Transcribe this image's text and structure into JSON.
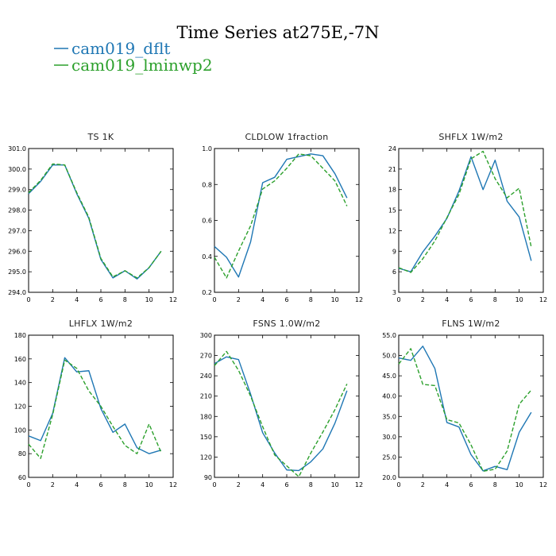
{
  "figure": {
    "title": "Time Series at275E,-7N",
    "legend": [
      {
        "label": "cam019_dflt",
        "color": "#1f77b4",
        "dash": "solid"
      },
      {
        "label": "cam019_lminwp2",
        "color": "#2ca02c",
        "dash": "dashed"
      }
    ]
  },
  "chart_data": [
    {
      "type": "line",
      "title": "TS",
      "units": "1K",
      "x": [
        0,
        1,
        2,
        3,
        4,
        5,
        6,
        7,
        8,
        9,
        10,
        11
      ],
      "xlim": [
        0,
        12
      ],
      "xticks": [
        0,
        2,
        4,
        6,
        8,
        10,
        12
      ],
      "ylim": [
        294,
        301
      ],
      "yticks": [
        "294.0",
        "295.0",
        "296.0",
        "297.0",
        "298.0",
        "299.0",
        "300.0",
        "301.0"
      ],
      "series": [
        {
          "name": "cam019_dflt",
          "values": [
            298.8,
            299.4,
            300.2,
            300.2,
            298.8,
            297.6,
            295.6,
            294.7,
            295.05,
            294.65,
            295.2,
            296.0
          ]
        },
        {
          "name": "cam019_lminwp2",
          "values": [
            298.85,
            299.45,
            300.25,
            300.2,
            298.85,
            297.65,
            295.65,
            294.75,
            295.05,
            294.7,
            295.2,
            296.0
          ]
        }
      ]
    },
    {
      "type": "line",
      "title": "CLDLOW",
      "units": "1fraction",
      "x": [
        0,
        1,
        2,
        3,
        4,
        5,
        6,
        7,
        8,
        9,
        10,
        11
      ],
      "xlim": [
        0,
        12
      ],
      "xticks": [
        0,
        2,
        4,
        6,
        8,
        10,
        12
      ],
      "ylim": [
        0.2,
        1.0
      ],
      "yticks": [
        "0.2",
        "0.4",
        "0.6",
        "0.8",
        "1.0"
      ],
      "series": [
        {
          "name": "cam019_dflt",
          "values": [
            0.455,
            0.395,
            0.285,
            0.48,
            0.81,
            0.84,
            0.94,
            0.955,
            0.97,
            0.96,
            0.86,
            0.725
          ]
        },
        {
          "name": "cam019_lminwp2",
          "values": [
            0.395,
            0.28,
            0.43,
            0.57,
            0.775,
            0.82,
            0.89,
            0.97,
            0.96,
            0.89,
            0.82,
            0.68
          ]
        }
      ]
    },
    {
      "type": "line",
      "title": "SHFLX",
      "units": "1W/m2",
      "x": [
        0,
        1,
        2,
        3,
        4,
        5,
        6,
        7,
        8,
        9,
        10,
        11
      ],
      "xlim": [
        0,
        12
      ],
      "xticks": [
        0,
        2,
        4,
        6,
        8,
        10,
        12
      ],
      "ylim": [
        3,
        24
      ],
      "yticks": [
        "3",
        "6",
        "9",
        "12",
        "15",
        "18",
        "21",
        "24"
      ],
      "series": [
        {
          "name": "cam019_dflt",
          "values": [
            6.5,
            6.0,
            8.9,
            11.2,
            13.8,
            17.8,
            22.8,
            18.0,
            22.3,
            16.3,
            14.0,
            7.6
          ]
        },
        {
          "name": "cam019_lminwp2",
          "values": [
            6.6,
            5.9,
            7.9,
            10.5,
            13.9,
            17.3,
            22.5,
            23.6,
            19.6,
            16.8,
            18.2,
            9.6
          ]
        }
      ]
    },
    {
      "type": "line",
      "title": "LHFLX",
      "units": "1W/m2",
      "x": [
        0,
        1,
        2,
        3,
        4,
        5,
        6,
        7,
        8,
        9,
        10,
        11
      ],
      "xlim": [
        0,
        12
      ],
      "xticks": [
        0,
        2,
        4,
        6,
        8,
        10,
        12
      ],
      "ylim": [
        60,
        180
      ],
      "yticks": [
        "60",
        "80",
        "100",
        "120",
        "140",
        "160",
        "180"
      ],
      "series": [
        {
          "name": "cam019_dflt",
          "values": [
            95,
            91,
            114,
            161,
            149,
            150,
            118,
            98,
            105,
            85,
            80,
            83
          ]
        },
        {
          "name": "cam019_lminwp2",
          "values": [
            88,
            76,
            113,
            159,
            152,
            133,
            120,
            103,
            87,
            80,
            105,
            81
          ]
        }
      ]
    },
    {
      "type": "line",
      "title": "FSNS",
      "units": "1.0W/m2",
      "x": [
        0,
        1,
        2,
        3,
        4,
        5,
        6,
        7,
        8,
        9,
        10,
        11
      ],
      "xlim": [
        0,
        12
      ],
      "xticks": [
        0,
        2,
        4,
        6,
        8,
        10,
        12
      ],
      "ylim": [
        90,
        300
      ],
      "yticks": [
        "90",
        "120",
        "150",
        "180",
        "210",
        "240",
        "270",
        "300"
      ],
      "series": [
        {
          "name": "cam019_dflt",
          "values": [
            258,
            268,
            264,
            213,
            156,
            126,
            101,
            100,
            113,
            132,
            170,
            218
          ]
        },
        {
          "name": "cam019_lminwp2",
          "values": [
            255,
            276,
            248,
            210,
            165,
            123,
            107,
            91,
            126,
            157,
            190,
            228
          ]
        }
      ]
    },
    {
      "type": "line",
      "title": "FLNS",
      "units": "1W/m2",
      "x": [
        0,
        1,
        2,
        3,
        4,
        5,
        6,
        7,
        8,
        9,
        10,
        11
      ],
      "xlim": [
        0,
        12
      ],
      "xticks": [
        0,
        2,
        4,
        6,
        8,
        10,
        12
      ],
      "ylim": [
        20,
        55
      ],
      "yticks": [
        "20.0",
        "25.0",
        "30.0",
        "35.0",
        "40.0",
        "45.0",
        "50.0",
        "55.0"
      ],
      "series": [
        {
          "name": "cam019_dflt",
          "values": [
            49.4,
            48.8,
            52.3,
            46.8,
            33.5,
            32.4,
            25.6,
            21.6,
            22.7,
            21.9,
            31.1,
            36.0
          ]
        },
        {
          "name": "cam019_lminwp2",
          "values": [
            47.9,
            51.7,
            42.9,
            42.6,
            34.2,
            33.4,
            28.0,
            21.5,
            22.0,
            26.5,
            38.0,
            41.5
          ]
        }
      ]
    }
  ]
}
